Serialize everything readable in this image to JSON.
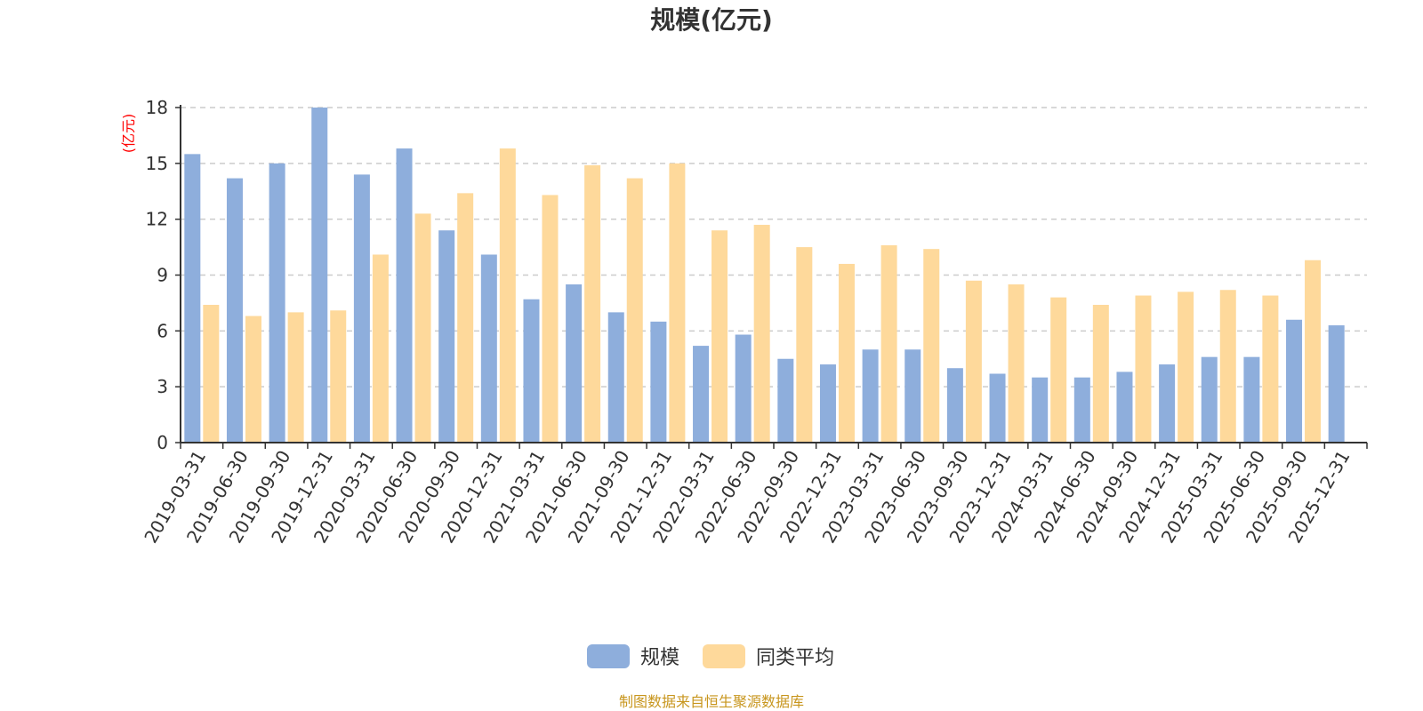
{
  "chart_data": {
    "type": "bar",
    "title": "规模(亿元)",
    "ylabel": "(亿元)",
    "ylim": [
      0,
      18
    ],
    "yticks": [
      0,
      3,
      6,
      9,
      12,
      15,
      18
    ],
    "grid": "horizontal-dashed",
    "legend_position": "bottom-center",
    "categories": [
      "2019-03-31",
      "2019-06-30",
      "2019-09-30",
      "2019-12-31",
      "2020-03-31",
      "2020-06-30",
      "2020-09-30",
      "2020-12-31",
      "2021-03-31",
      "2021-06-30",
      "2021-09-30",
      "2021-12-31",
      "2022-03-31",
      "2022-06-30",
      "2022-09-30",
      "2022-12-31",
      "2023-03-31",
      "2023-06-30",
      "2023-09-30",
      "2023-12-31",
      "2024-03-31",
      "2024-06-30",
      "2024-09-30",
      "2024-12-31",
      "2025-03-31",
      "2025-06-30",
      "2025-09-30",
      "2025-12-31"
    ],
    "series": [
      {
        "name": "规模",
        "color": "#8eaedc",
        "values": [
          15.5,
          14.2,
          15.0,
          18.0,
          14.4,
          15.8,
          11.4,
          10.1,
          7.7,
          8.5,
          7.0,
          6.5,
          5.2,
          5.8,
          4.5,
          4.2,
          5.0,
          5.0,
          4.0,
          3.7,
          3.5,
          3.5,
          3.8,
          4.2,
          4.6,
          4.6,
          6.6,
          6.3
        ]
      },
      {
        "name": "同类平均",
        "color": "#fed99b",
        "values": [
          7.4,
          6.8,
          7.0,
          7.1,
          10.1,
          12.3,
          13.4,
          15.8,
          13.3,
          14.9,
          14.2,
          15.0,
          11.4,
          11.7,
          10.5,
          9.6,
          10.6,
          10.4,
          8.7,
          8.5,
          7.8,
          7.4,
          7.9,
          8.1,
          8.2,
          7.9,
          9.8,
          null
        ]
      }
    ]
  },
  "source_note": "制图数据来自恒生聚源数据库"
}
